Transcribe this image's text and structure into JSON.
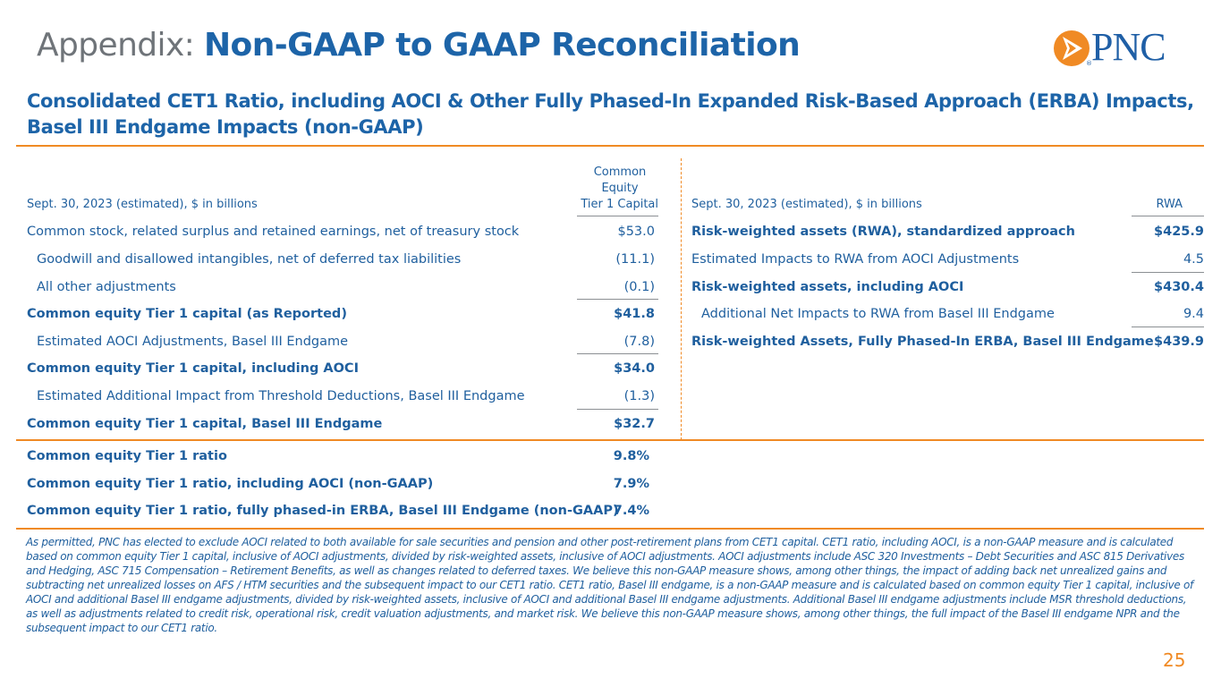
{
  "header": {
    "title_prefix": "Appendix:",
    "title_main": "Non-GAAP to GAAP Reconciliation",
    "logo_text": "PNC",
    "logo_mark": "®"
  },
  "subtitle": {
    "line1": "Consolidated CET1 Ratio, including AOCI & Other Fully Phased-In Expanded Risk-Based Approach (ERBA) Impacts,",
    "line2": "Basel III Endgame Impacts (non-GAAP)"
  },
  "left_table": {
    "header_label": "Sept. 30, 2023 (estimated), $ in billions",
    "header_value_line1": "Common",
    "header_value_line2": "Equity",
    "header_value_line3": "Tier 1 Capital",
    "rows": [
      {
        "label": "Common stock, related surplus and retained earnings, net of treasury stock",
        "value": "$53.0"
      },
      {
        "label": "Goodwill and disallowed intangibles, net of deferred tax liabilities",
        "value": "(11.1)"
      },
      {
        "label": "All other adjustments",
        "value": "(0.1)"
      },
      {
        "label": "Common equity Tier 1 capital (as Reported)",
        "value": "$41.8"
      },
      {
        "label": "Estimated AOCI Adjustments, Basel III Endgame",
        "value": "(7.8)"
      },
      {
        "label": "Common equity Tier 1 capital, including AOCI",
        "value": "$34.0"
      },
      {
        "label": "Estimated Additional Impact from Threshold Deductions, Basel III Endgame",
        "value": "(1.3)"
      },
      {
        "label": "Common equity Tier 1 capital, Basel III Endgame",
        "value": "$32.7"
      }
    ]
  },
  "right_table": {
    "header_label": "Sept. 30, 2023 (estimated), $ in billions",
    "header_value": "RWA",
    "rows": [
      {
        "label": "Risk-weighted assets (RWA), standardized approach",
        "value": "$425.9"
      },
      {
        "label": "Estimated Impacts to RWA from AOCI Adjustments",
        "value": "4.5"
      },
      {
        "label": "Risk-weighted assets, including AOCI",
        "value": "$430.4"
      },
      {
        "label": "Additional Net Impacts to RWA from Basel III Endgame",
        "value": "9.4"
      },
      {
        "label": "Risk-weighted Assets, Fully Phased-In ERBA, Basel III Endgame",
        "value": "$439.9"
      }
    ]
  },
  "ratios": [
    {
      "label": "Common equity Tier 1 ratio",
      "value": "9.8%"
    },
    {
      "label": "Common equity Tier 1 ratio, including AOCI (non-GAAP)",
      "value": "7.9%"
    },
    {
      "label": "Common equity Tier 1 ratio, fully phased-in ERBA, Basel III Endgame (non-GAAP)",
      "value": "7.4%"
    }
  ],
  "footnote": "As permitted, PNC has elected to exclude AOCI related to both available for sale securities and pension and other post-retirement plans from CET1 capital. CET1 ratio, including AOCI, is a non-GAAP measure and is calculated based on common equity Tier 1 capital, inclusive of AOCI adjustments, divided by risk-weighted assets, inclusive of AOCI adjustments. AOCI adjustments include ASC 320 Investments – Debt Securities and ASC 815 Derivatives and Hedging, ASC 715 Compensation – Retirement Benefits, as well as changes related to deferred taxes. We believe this non-GAAP measure shows, among other things, the impact of adding back net unrealized gains and subtracting net unrealized losses on AFS / HTM securities and the subsequent impact to our CET1 ratio. CET1 ratio, Basel III endgame, is a non-GAAP measure and is calculated based on common equity Tier 1 capital, inclusive of AOCI and additional Basel III endgame adjustments, divided by risk-weighted assets, inclusive of AOCI and additional Basel III endgame adjustments. Additional Basel III endgame adjustments include MSR threshold deductions, as well as adjustments related to credit risk, operational risk, credit valuation adjustments, and market risk. We believe this non-GAAP measure shows, among other things, the full impact of the Basel III endgame NPR and the subsequent impact to our CET1 ratio.",
  "page_number": "25",
  "colors": {
    "brand_blue": "#1d64a8",
    "accent_orange": "#f08a24",
    "gray": "#6f7479"
  }
}
